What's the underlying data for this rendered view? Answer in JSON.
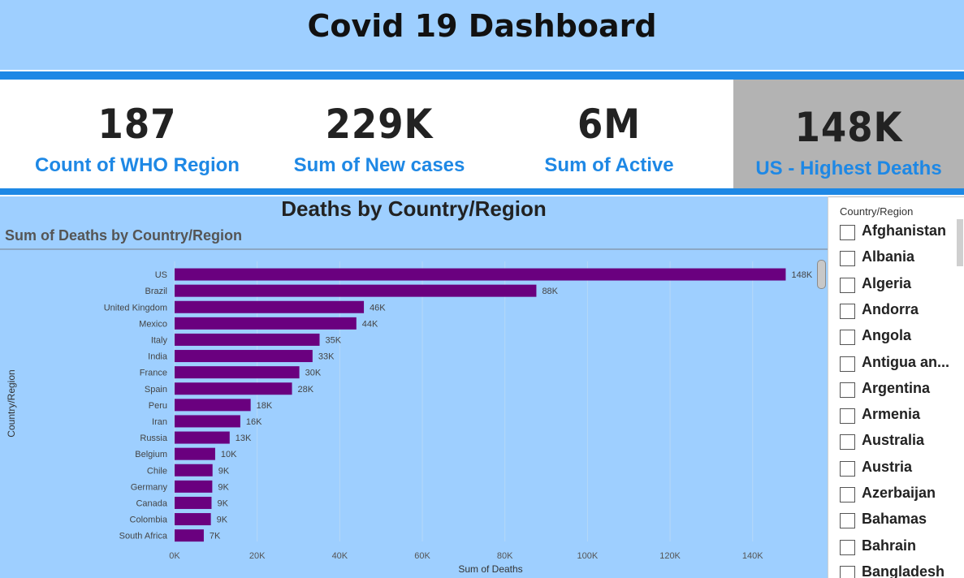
{
  "header": {
    "title": "Covid 19 Dashboard"
  },
  "kpis": [
    {
      "value": "187",
      "label": "Count of WHO Region"
    },
    {
      "value": "229K",
      "label": "Sum of New cases"
    },
    {
      "value": "6M",
      "label": "Sum of Active"
    },
    {
      "value": "148K",
      "label": "US - Highest Deaths"
    }
  ],
  "colors": {
    "header_bg": "#9ecfff",
    "accent": "#1e88e5",
    "bar": "#6a007f",
    "highlight_card": "#b3b3b3"
  },
  "chart_data": {
    "type": "bar",
    "orientation": "horizontal",
    "title": "Deaths by Country/Region",
    "subtitle": "Sum of Deaths by Country/Region",
    "xlabel": "Sum of Deaths",
    "ylabel": "Country/Region",
    "categories": [
      "US",
      "Brazil",
      "United Kingdom",
      "Mexico",
      "Italy",
      "India",
      "France",
      "Spain",
      "Peru",
      "Iran",
      "Russia",
      "Belgium",
      "Chile",
      "Germany",
      "Canada",
      "Colombia",
      "South Africa"
    ],
    "values": [
      148011,
      87618,
      45844,
      44022,
      35112,
      33408,
      30212,
      28432,
      18418,
      15912,
      13334,
      9822,
      9187,
      9125,
      8944,
      8777,
      7067
    ],
    "value_labels": [
      "148K",
      "88K",
      "46K",
      "44K",
      "35K",
      "33K",
      "30K",
      "28K",
      "18K",
      "16K",
      "13K",
      "10K",
      "9K",
      "9K",
      "9K",
      "9K",
      "7K"
    ],
    "xticks": [
      0,
      20000,
      40000,
      60000,
      80000,
      100000,
      120000,
      140000
    ],
    "xtick_labels": [
      "0K",
      "20K",
      "40K",
      "60K",
      "80K",
      "100K",
      "120K",
      "140K"
    ],
    "xlim": [
      0,
      150000
    ]
  },
  "slicer": {
    "title": "Country/Region",
    "items": [
      "Afghanistan",
      "Albania",
      "Algeria",
      "Andorra",
      "Angola",
      "Antigua an...",
      "Argentina",
      "Armenia",
      "Australia",
      "Austria",
      "Azerbaijan",
      "Bahamas",
      "Bahrain",
      "Bangladesh"
    ]
  }
}
